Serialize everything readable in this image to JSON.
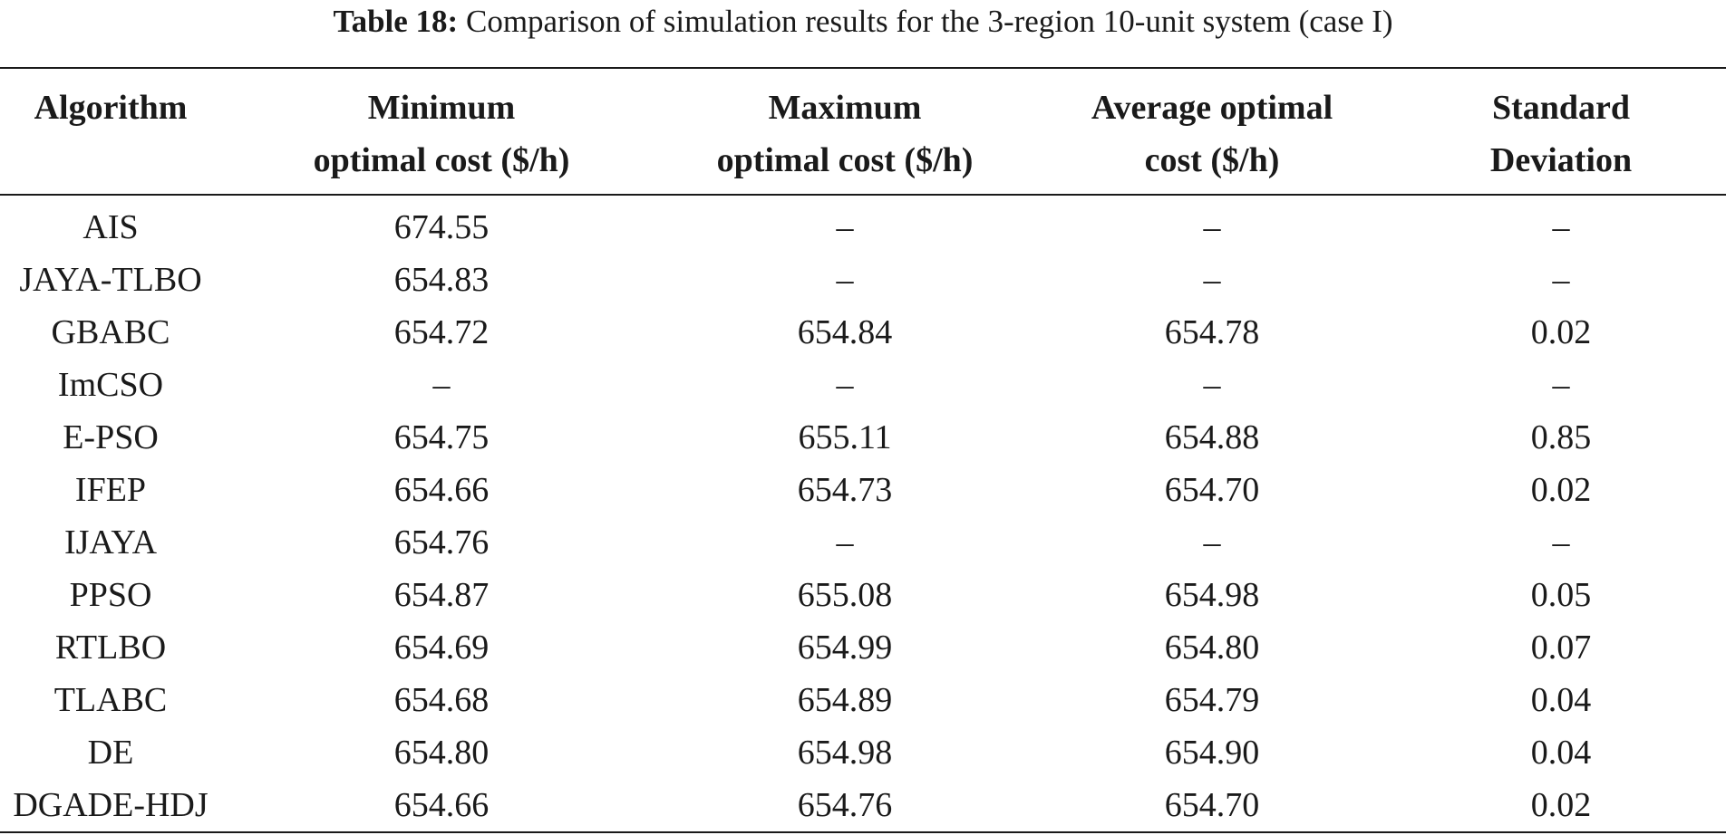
{
  "caption": {
    "label": "Table 18:",
    "text": "Comparison of simulation results for the 3-region 10-unit system (case I)"
  },
  "table": {
    "headers": [
      [
        "Algorithm"
      ],
      [
        "Minimum",
        "optimal cost ($/h)"
      ],
      [
        "Maximum",
        "optimal cost ($/h)"
      ],
      [
        "Average optimal",
        "cost ($/h)"
      ],
      [
        "Standard",
        "Deviation"
      ]
    ],
    "rows": [
      [
        "AIS",
        "674.55",
        "–",
        "–",
        "–"
      ],
      [
        "JAYA-TLBO",
        "654.83",
        "–",
        "–",
        "–"
      ],
      [
        "GBABC",
        "654.72",
        "654.84",
        "654.78",
        "0.02"
      ],
      [
        "ImCSO",
        "–",
        "–",
        "–",
        "–"
      ],
      [
        "E-PSO",
        "654.75",
        "655.11",
        "654.88",
        "0.85"
      ],
      [
        "IFEP",
        "654.66",
        "654.73",
        "654.70",
        "0.02"
      ],
      [
        "IJAYA",
        "654.76",
        "–",
        "–",
        "–"
      ],
      [
        "PPSO",
        "654.87",
        "655.08",
        "654.98",
        "0.05"
      ],
      [
        "RTLBO",
        "654.69",
        "654.99",
        "654.80",
        "0.07"
      ],
      [
        "TLABC",
        "654.68",
        "654.89",
        "654.79",
        "0.04"
      ],
      [
        "DE",
        "654.80",
        "654.98",
        "654.90",
        "0.04"
      ],
      [
        "DGADE-HDJ",
        "654.66",
        "654.76",
        "654.70",
        "0.02"
      ]
    ]
  }
}
